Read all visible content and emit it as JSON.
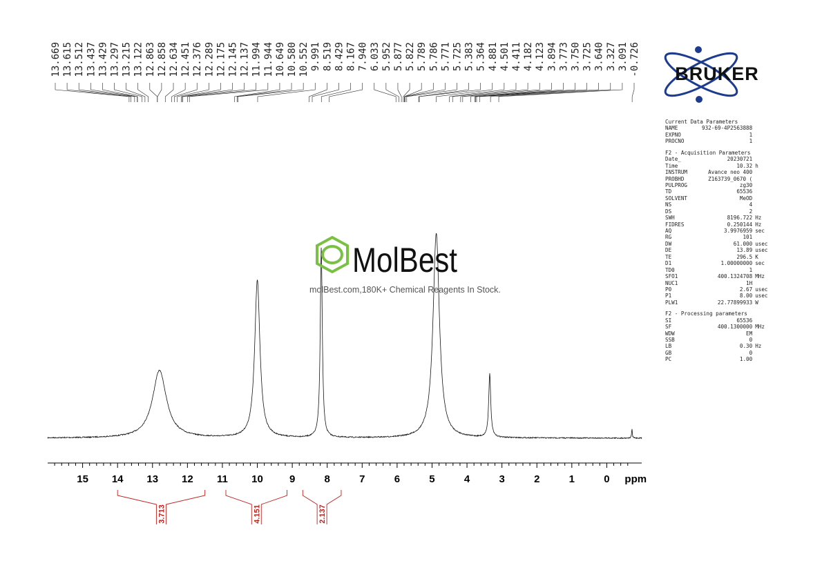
{
  "brand": {
    "name": "BRUKER",
    "colors": {
      "text": "#111111",
      "orbit": "#1d3c8f"
    }
  },
  "watermark": {
    "brand": "MolBest",
    "tagline": "molBest.com,180K+ Chemical Reagents In Stock.",
    "color": "#7ac143"
  },
  "parameters": {
    "sections": [
      {
        "title": "Current Data Parameters",
        "rows": [
          {
            "key": "NAME",
            "value": "932-69-4P2563888",
            "unit": ""
          },
          {
            "key": "EXPNO",
            "value": "1",
            "unit": ""
          },
          {
            "key": "PROCNO",
            "value": "1",
            "unit": ""
          }
        ]
      },
      {
        "title": "F2 - Acquisition Parameters",
        "rows": [
          {
            "key": "Date_",
            "value": "20230721",
            "unit": ""
          },
          {
            "key": "Time",
            "value": "10.32",
            "unit": "h"
          },
          {
            "key": "INSTRUM",
            "value": "Avance neo 400",
            "unit": ""
          },
          {
            "key": "PROBHD",
            "value": "Z163739_0670 (",
            "unit": ""
          },
          {
            "key": "PULPROG",
            "value": "zg30",
            "unit": ""
          },
          {
            "key": "TD",
            "value": "65536",
            "unit": ""
          },
          {
            "key": "SOLVENT",
            "value": "MeOD",
            "unit": ""
          },
          {
            "key": "NS",
            "value": "4",
            "unit": ""
          },
          {
            "key": "DS",
            "value": "2",
            "unit": ""
          },
          {
            "key": "SWH",
            "value": "8196.722",
            "unit": "Hz"
          },
          {
            "key": "FIDRES",
            "value": "0.250144",
            "unit": "Hz"
          },
          {
            "key": "AQ",
            "value": "3.9976959",
            "unit": "sec"
          },
          {
            "key": "RG",
            "value": "101",
            "unit": ""
          },
          {
            "key": "DW",
            "value": "61.000",
            "unit": "usec"
          },
          {
            "key": "DE",
            "value": "13.89",
            "unit": "usec"
          },
          {
            "key": "TE",
            "value": "296.5",
            "unit": "K"
          },
          {
            "key": "D1",
            "value": "1.00000000",
            "unit": "sec"
          },
          {
            "key": "TD0",
            "value": "1",
            "unit": ""
          },
          {
            "key": "SFO1",
            "value": "400.1324708",
            "unit": "MHz"
          },
          {
            "key": "NUC1",
            "value": "1H",
            "unit": ""
          },
          {
            "key": "P0",
            "value": "2.67",
            "unit": "usec"
          },
          {
            "key": "P1",
            "value": "8.00",
            "unit": "usec"
          },
          {
            "key": "PLW1",
            "value": "22.77899933",
            "unit": "W"
          }
        ]
      },
      {
        "title": "F2 - Processing parameters",
        "rows": [
          {
            "key": "SI",
            "value": "65536",
            "unit": ""
          },
          {
            "key": "SF",
            "value": "400.1300000",
            "unit": "MHz"
          },
          {
            "key": "WDW",
            "value": "EM",
            "unit": ""
          },
          {
            "key": "SSB",
            "value": "0",
            "unit": ""
          },
          {
            "key": "LB",
            "value": "0.30",
            "unit": "Hz"
          },
          {
            "key": "GB",
            "value": "0",
            "unit": ""
          },
          {
            "key": "PC",
            "value": "1.00",
            "unit": ""
          }
        ]
      }
    ]
  },
  "chart_data": {
    "type": "line",
    "x_axis": {
      "unit_label": "ppm",
      "xlim": [
        16.0,
        -1.0
      ],
      "reversed": true,
      "ticks": [
        15,
        14,
        13,
        12,
        11,
        10,
        9,
        8,
        7,
        6,
        5,
        4,
        3,
        2,
        1,
        0
      ],
      "minor_step": 0.2
    },
    "peaks": [
      {
        "center": 12.8,
        "height": 0.33,
        "width": 0.24
      },
      {
        "center": 10.0,
        "height": 0.77,
        "width": 0.09
      },
      {
        "center": 8.17,
        "height": 0.93,
        "width": 0.035
      },
      {
        "center": 4.88,
        "height": 1.0,
        "width": 0.11
      },
      {
        "center": 3.35,
        "height": 0.31,
        "width": 0.035
      },
      {
        "center": -0.72,
        "height": 0.045,
        "width": 0.012
      }
    ],
    "peak_labels": [
      "13.669",
      "13.615",
      "13.512",
      "13.437",
      "13.429",
      "13.297",
      "13.215",
      "13.122",
      "12.863",
      "12.858",
      "12.634",
      "12.451",
      "12.376",
      "12.289",
      "12.175",
      "12.145",
      "12.137",
      "11.994",
      "11.944",
      "10.649",
      "10.580",
      "10.552",
      "9.991",
      "8.519",
      "8.429",
      "8.167",
      "7.940",
      "6.033",
      "5.952",
      "5.877",
      "5.822",
      "5.789",
      "5.786",
      "5.771",
      "5.725",
      "5.383",
      "5.364",
      "4.881",
      "4.501",
      "4.411",
      "4.182",
      "4.123",
      "3.894",
      "3.773",
      "3.750",
      "3.725",
      "3.640",
      "3.327",
      "3.091",
      "-0.726"
    ],
    "integrals": [
      {
        "from": 14.0,
        "to": 11.5,
        "value": "3.713"
      },
      {
        "from": 10.9,
        "to": 9.15,
        "value": "4.151"
      },
      {
        "from": 8.7,
        "to": 7.6,
        "value": "2.137"
      }
    ]
  }
}
